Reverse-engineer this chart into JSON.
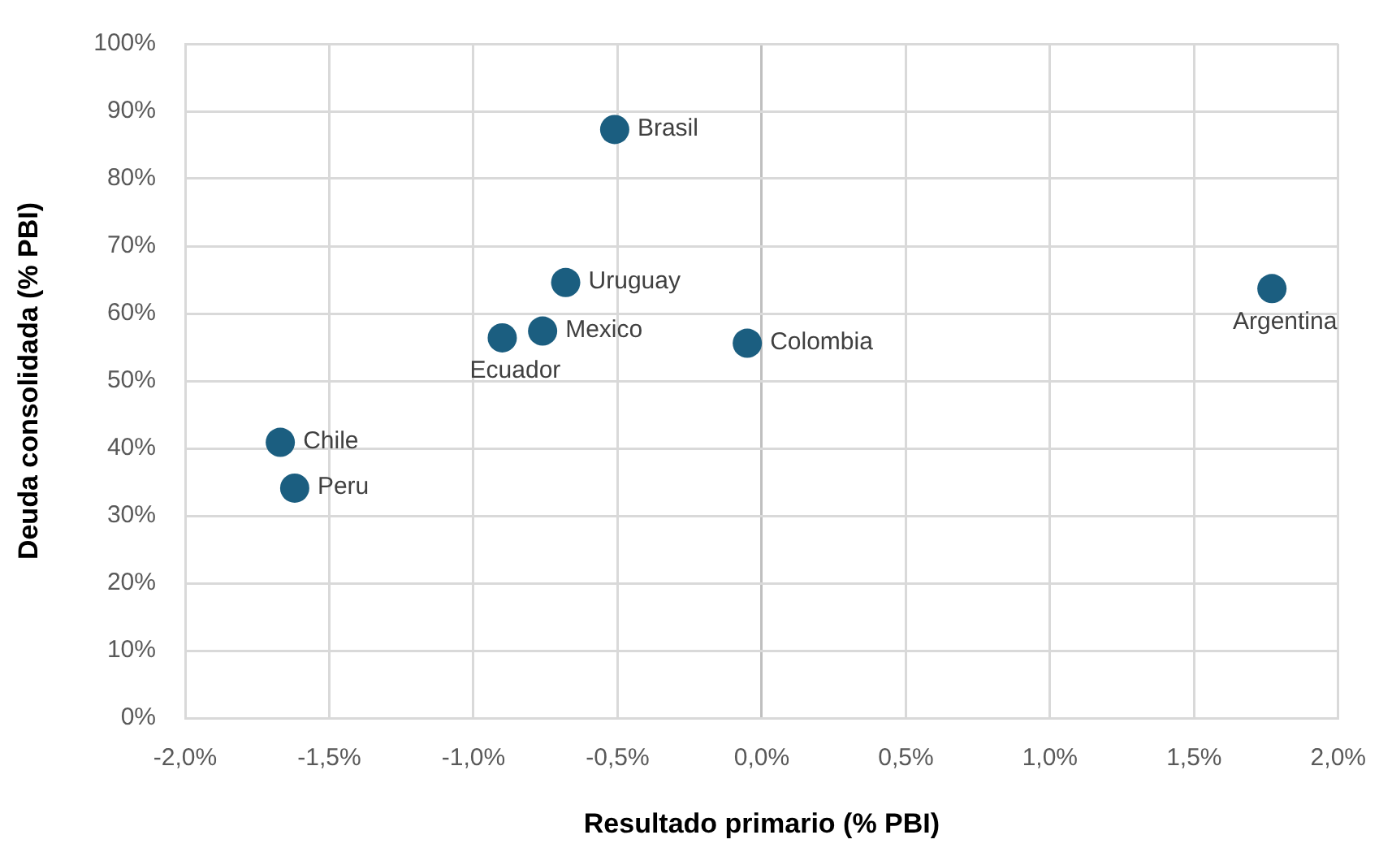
{
  "chart_data": {
    "type": "scatter",
    "xlabel": "Resultado primario (% PBI)",
    "ylabel": "Deuda consolidada (% PBI)",
    "x": [
      -0.51,
      -0.68,
      -0.76,
      -0.9,
      -0.05,
      1.77,
      -1.67,
      -1.62
    ],
    "series": [
      {
        "color": "#1b5e80",
        "values": [
          87.3,
          64.6,
          57.4,
          56.4,
          55.6,
          63.7,
          40.9,
          34.1
        ]
      }
    ],
    "marker": "circle",
    "grid": true,
    "legend": false,
    "xlim": [
      -2,
      2
    ],
    "xticks": [
      {
        "value": -2,
        "label": "-2,0%"
      },
      {
        "value": -1.5,
        "label": "-1,5%"
      },
      {
        "value": -1,
        "label": "-1,0%"
      },
      {
        "value": -0.5,
        "label": "-0,5%"
      },
      {
        "value": 0,
        "label": "0,0%"
      },
      {
        "value": 0.5,
        "label": "0,5%"
      },
      {
        "value": 1,
        "label": "1,0%"
      },
      {
        "value": 1.5,
        "label": "1,5%"
      },
      {
        "value": 2,
        "label": "2,0%"
      }
    ],
    "ylim": [
      0,
      100
    ],
    "yticks": [
      {
        "value": 0,
        "label": "0%"
      },
      {
        "value": 10,
        "label": "10%"
      },
      {
        "value": 20,
        "label": "20%"
      },
      {
        "value": 30,
        "label": "30%"
      },
      {
        "value": 40,
        "label": "40%"
      },
      {
        "value": 50,
        "label": "50%"
      },
      {
        "value": 60,
        "label": "60%"
      },
      {
        "value": 70,
        "label": "70%"
      },
      {
        "value": 80,
        "label": "80%"
      },
      {
        "value": 90,
        "label": "90%"
      },
      {
        "value": 100,
        "label": "100%"
      }
    ],
    "annotations": [
      {
        "text": "Brasil",
        "x": -0.51,
        "y": 87.3
      },
      {
        "text": "Uruguay",
        "x": -0.68,
        "y": 64.6
      },
      {
        "text": "Mexico",
        "x": -0.76,
        "y": 57.4
      },
      {
        "text": "Ecuador",
        "x": -0.9,
        "y": 56.4
      },
      {
        "text": "Colombia",
        "x": -0.05,
        "y": 55.6
      },
      {
        "text": "Argentina",
        "x": 1.77,
        "y": 63.7
      },
      {
        "text": "Chile",
        "x": -1.67,
        "y": 40.9
      },
      {
        "text": "Peru",
        "x": -1.62,
        "y": 34.1
      }
    ]
  }
}
